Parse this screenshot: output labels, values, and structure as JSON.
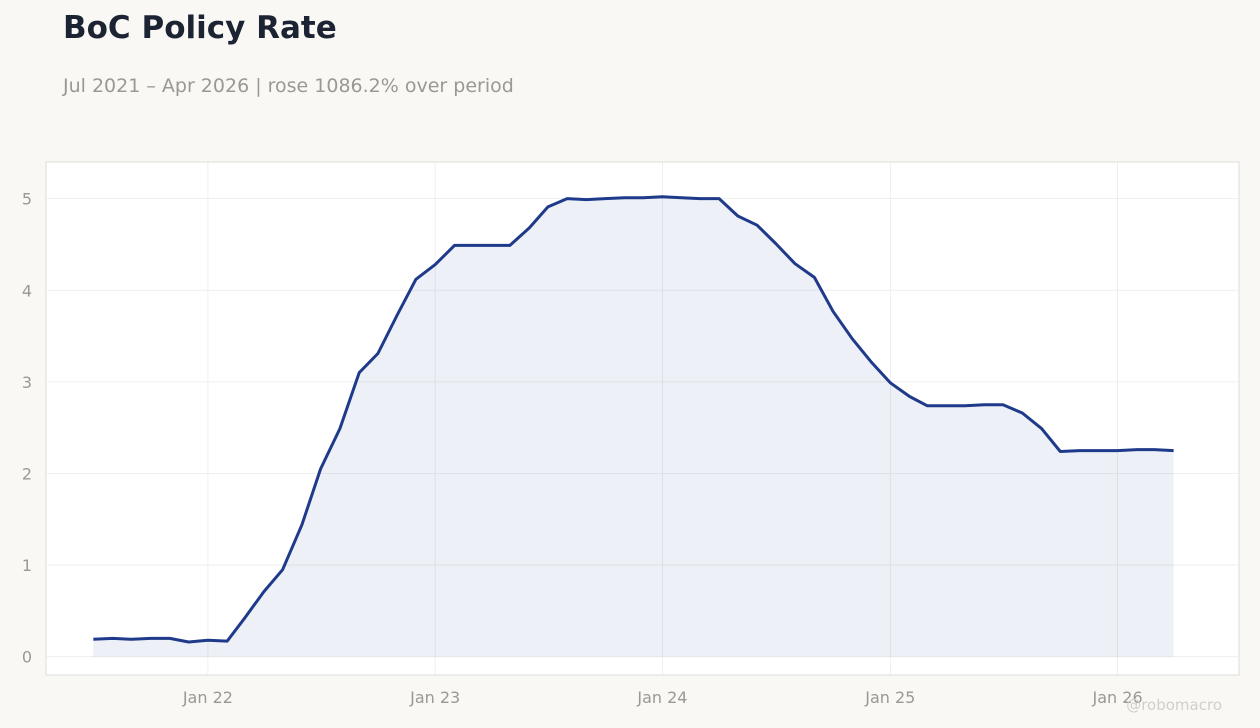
{
  "header": {
    "title": "BoC Policy Rate",
    "subtitle": "Jul 2021 – Apr 2026 | rose 1086.2% over period"
  },
  "credit": "@robomacro",
  "colors": {
    "line": "#1f3a8a",
    "fill": "#1f3a8a",
    "background": "#f9f8f5",
    "plot_background": "#ffffff",
    "grid": "#ebebeb"
  },
  "chart_data": {
    "type": "area",
    "title": "BoC Policy Rate",
    "subtitle": "Jul 2021 – Apr 2026 | rose 1086.2% over period",
    "xlabel": "",
    "ylabel": "",
    "grid": true,
    "legend": "none",
    "ylim": [
      -0.2,
      5.4
    ],
    "xlim": [
      "2021-04-16",
      "2026-07-15"
    ],
    "x_ticks": [
      {
        "value": "2022-01-01",
        "label": "Jan 22"
      },
      {
        "value": "2023-01-01",
        "label": "Jan 23"
      },
      {
        "value": "2024-01-01",
        "label": "Jan 24"
      },
      {
        "value": "2025-01-01",
        "label": "Jan 25"
      },
      {
        "value": "2026-01-01",
        "label": "Jan 26"
      }
    ],
    "y_ticks": [
      0,
      1,
      2,
      3,
      4,
      5
    ],
    "series": [
      {
        "x": [
          "2021-07-01",
          "2021-08-01",
          "2021-09-01",
          "2021-10-01",
          "2021-11-01",
          "2021-12-01",
          "2022-01-01",
          "2022-02-01",
          "2022-03-01",
          "2022-04-01",
          "2022-05-01",
          "2022-06-01",
          "2022-07-01",
          "2022-08-01",
          "2022-09-01",
          "2022-10-01",
          "2022-11-01",
          "2022-12-01",
          "2023-01-01",
          "2023-02-01",
          "2023-03-01",
          "2023-04-01",
          "2023-05-01",
          "2023-06-01",
          "2023-07-01",
          "2023-08-01",
          "2023-09-01",
          "2023-10-01",
          "2023-11-01",
          "2023-12-01",
          "2024-01-01",
          "2024-02-01",
          "2024-03-01",
          "2024-04-01",
          "2024-05-01",
          "2024-06-01",
          "2024-07-01",
          "2024-08-01",
          "2024-09-01",
          "2024-10-01",
          "2024-11-01",
          "2024-12-01",
          "2025-01-01",
          "2025-02-01",
          "2025-03-01",
          "2025-04-01",
          "2025-05-01",
          "2025-06-01",
          "2025-07-01",
          "2025-08-01",
          "2025-09-01",
          "2025-10-01",
          "2025-11-01",
          "2025-12-01",
          "2026-01-01",
          "2026-02-01",
          "2026-03-01",
          "2026-04-01"
        ],
        "values": [
          0.19,
          0.2,
          0.19,
          0.2,
          0.2,
          0.16,
          0.18,
          0.17,
          0.42,
          0.71,
          0.95,
          1.44,
          2.05,
          2.49,
          3.1,
          3.31,
          3.73,
          4.12,
          4.28,
          4.49,
          4.49,
          4.49,
          4.49,
          4.68,
          4.91,
          5.0,
          4.99,
          5.0,
          5.01,
          5.01,
          5.02,
          5.01,
          5.0,
          5.0,
          4.81,
          4.71,
          4.51,
          4.29,
          4.14,
          3.77,
          3.47,
          3.22,
          2.99,
          2.84,
          2.74,
          2.74,
          2.74,
          2.75,
          2.75,
          2.66,
          2.49,
          2.24,
          2.25,
          2.25,
          2.25,
          2.26,
          2.26,
          2.25
        ]
      }
    ]
  }
}
